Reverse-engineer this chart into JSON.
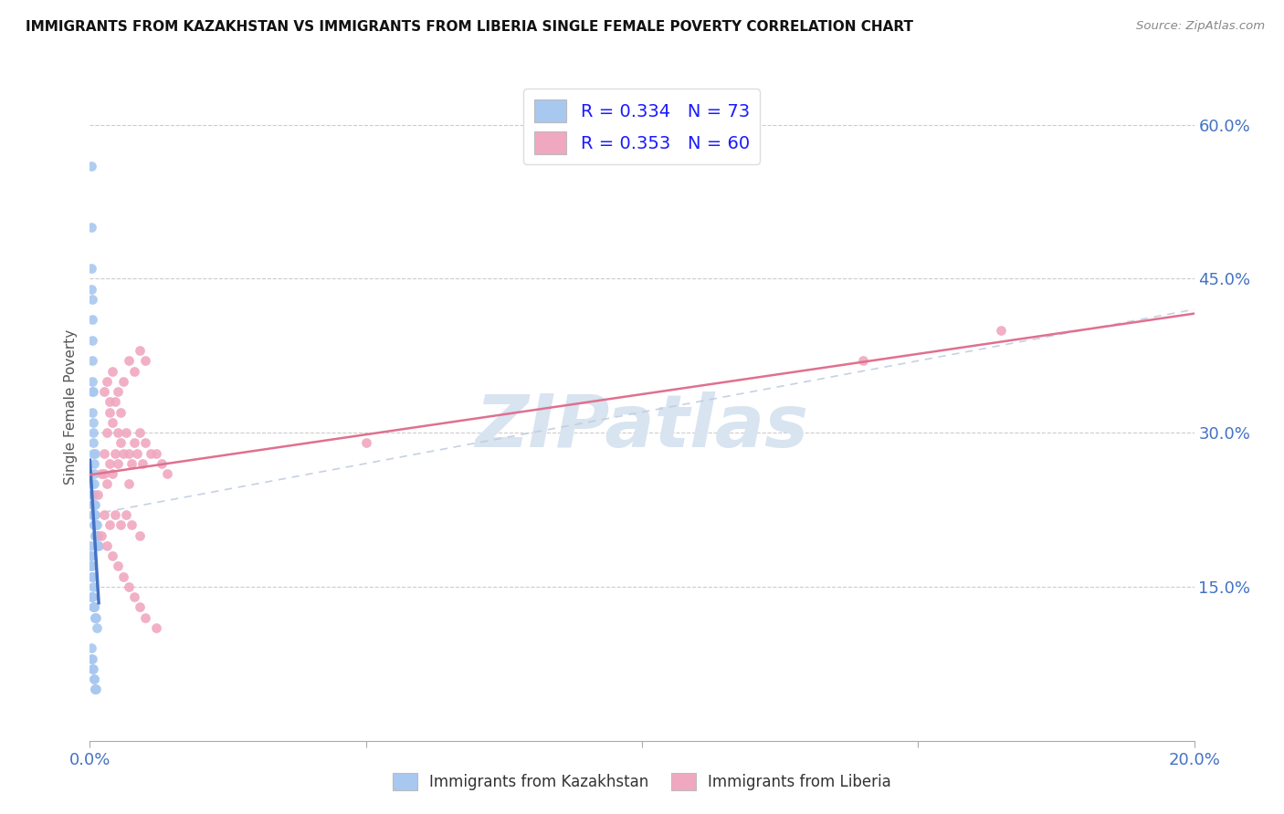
{
  "title": "IMMIGRANTS FROM KAZAKHSTAN VS IMMIGRANTS FROM LIBERIA SINGLE FEMALE POVERTY CORRELATION CHART",
  "source": "Source: ZipAtlas.com",
  "ylabel": "Single Female Poverty",
  "y_ticks_labels": [
    "15.0%",
    "30.0%",
    "45.0%",
    "60.0%"
  ],
  "y_ticks_values": [
    0.15,
    0.3,
    0.45,
    0.6
  ],
  "R_kaz": 0.334,
  "N_kaz": 73,
  "R_lib": 0.353,
  "N_lib": 60,
  "color_kaz": "#a8c8f0",
  "color_lib": "#f0a8c0",
  "color_line_kaz": "#4472c4",
  "color_line_lib": "#e07090",
  "color_diag": "#c0cce0",
  "background": "#ffffff",
  "watermark_color": "#d8e4f0",
  "xlim": [
    0.0,
    0.2
  ],
  "ylim": [
    0.0,
    0.65
  ],
  "kaz_x": [
    0.0002,
    0.0003,
    0.0003,
    0.0004,
    0.0004,
    0.0004,
    0.0005,
    0.0005,
    0.0005,
    0.0005,
    0.0006,
    0.0006,
    0.0006,
    0.0006,
    0.0007,
    0.0007,
    0.0007,
    0.0008,
    0.0008,
    0.0009,
    0.001,
    0.001,
    0.0011,
    0.0011,
    0.0012,
    0.0012,
    0.0013,
    0.0014,
    0.0015,
    0.0016,
    0.0002,
    0.0003,
    0.0004,
    0.0005,
    0.0006,
    0.0007,
    0.0008,
    0.0009,
    0.001,
    0.0011,
    0.0001,
    0.0001,
    0.0002,
    0.0002,
    0.0003,
    0.0003,
    0.0004,
    0.0004,
    0.0005,
    0.0006,
    0.0003,
    0.0004,
    0.0005,
    0.0006,
    0.0007,
    0.0008,
    0.0009,
    0.001,
    0.0011,
    0.0012,
    0.0002,
    0.0003,
    0.0004,
    0.0005,
    0.0006,
    0.0007,
    0.0008,
    0.0009,
    0.001,
    0.0011,
    0.0003,
    0.0006,
    0.0009
  ],
  "kaz_y": [
    0.56,
    0.5,
    0.46,
    0.43,
    0.41,
    0.39,
    0.37,
    0.35,
    0.34,
    0.32,
    0.31,
    0.3,
    0.29,
    0.28,
    0.27,
    0.26,
    0.25,
    0.24,
    0.23,
    0.23,
    0.22,
    0.22,
    0.21,
    0.21,
    0.21,
    0.2,
    0.2,
    0.2,
    0.19,
    0.19,
    0.25,
    0.24,
    0.23,
    0.22,
    0.22,
    0.21,
    0.21,
    0.2,
    0.2,
    0.2,
    0.19,
    0.18,
    0.18,
    0.17,
    0.17,
    0.17,
    0.16,
    0.16,
    0.16,
    0.15,
    0.14,
    0.14,
    0.14,
    0.13,
    0.13,
    0.13,
    0.12,
    0.12,
    0.12,
    0.11,
    0.09,
    0.08,
    0.08,
    0.07,
    0.07,
    0.06,
    0.06,
    0.05,
    0.05,
    0.05,
    0.44,
    0.34,
    0.28
  ],
  "lib_x": [
    0.0015,
    0.002,
    0.0025,
    0.0025,
    0.003,
    0.003,
    0.0035,
    0.0035,
    0.004,
    0.004,
    0.0045,
    0.0045,
    0.005,
    0.005,
    0.0055,
    0.0055,
    0.006,
    0.0065,
    0.007,
    0.007,
    0.0075,
    0.008,
    0.0085,
    0.009,
    0.0095,
    0.01,
    0.011,
    0.012,
    0.013,
    0.014,
    0.0025,
    0.003,
    0.0035,
    0.004,
    0.005,
    0.006,
    0.007,
    0.008,
    0.009,
    0.01,
    0.002,
    0.003,
    0.004,
    0.005,
    0.006,
    0.007,
    0.008,
    0.009,
    0.01,
    0.012,
    0.0025,
    0.0035,
    0.0045,
    0.0055,
    0.0065,
    0.0075,
    0.009,
    0.14,
    0.165,
    0.05
  ],
  "lib_y": [
    0.24,
    0.26,
    0.26,
    0.28,
    0.25,
    0.3,
    0.27,
    0.32,
    0.26,
    0.31,
    0.28,
    0.33,
    0.27,
    0.3,
    0.29,
    0.32,
    0.28,
    0.3,
    0.25,
    0.28,
    0.27,
    0.29,
    0.28,
    0.3,
    0.27,
    0.29,
    0.28,
    0.28,
    0.27,
    0.26,
    0.34,
    0.35,
    0.33,
    0.36,
    0.34,
    0.35,
    0.37,
    0.36,
    0.38,
    0.37,
    0.2,
    0.19,
    0.18,
    0.17,
    0.16,
    0.15,
    0.14,
    0.13,
    0.12,
    0.11,
    0.22,
    0.21,
    0.22,
    0.21,
    0.22,
    0.21,
    0.2,
    0.37,
    0.4,
    0.29
  ]
}
